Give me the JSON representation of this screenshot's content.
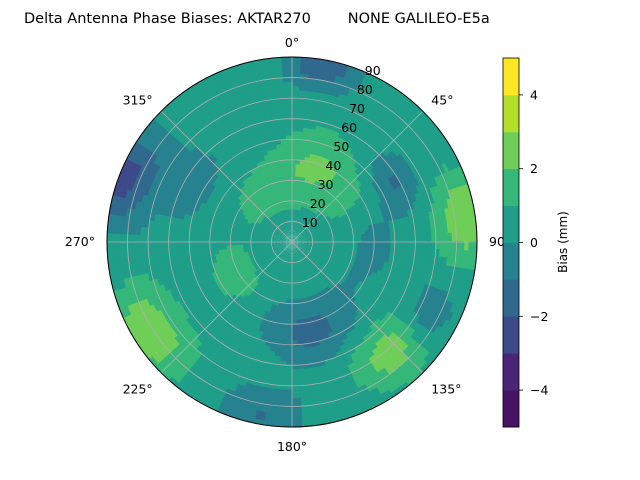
{
  "chart_data": {
    "type": "polar contour",
    "title": "Delta Antenna Phase Biases: AKTAR270        NONE GALILEO-E5a",
    "azimuth_labels": [
      "0°",
      "45°",
      "90°",
      "135°",
      "180°",
      "225°",
      "270°",
      "315°"
    ],
    "radial_labels": [
      "10",
      "20",
      "30",
      "40",
      "50",
      "60",
      "70",
      "80",
      "90"
    ],
    "radial_range": [
      0,
      90
    ],
    "grid": true,
    "colorbar": {
      "label": "Bias (mm)",
      "min": -5,
      "max": 5,
      "levels": [
        -5,
        -4,
        -3,
        -2,
        -1,
        0,
        1,
        2,
        3,
        4,
        5
      ],
      "tick_labels": [
        "4",
        "2",
        "0",
        "−2",
        "−4"
      ],
      "tick_values": [
        4,
        2,
        0,
        -2,
        -4
      ],
      "colormap": "viridis",
      "colors": [
        "#471365",
        "#482576",
        "#3e4989",
        "#31688e",
        "#26828e",
        "#1f9e89",
        "#35b779",
        "#6ece58",
        "#b5de2b",
        "#fde725"
      ]
    },
    "field": {
      "description_basis": "estimated contour field (bias in mm) over azimuth deg / zenith deg",
      "base_value": 0.55,
      "components": [
        {
          "az": 20,
          "zen": 38,
          "amp": 1.7,
          "width": 17
        },
        {
          "az": 82,
          "zen": 86,
          "amp": 2.4,
          "width": 14
        },
        {
          "az": 138,
          "zen": 72,
          "amp": 2.1,
          "width": 14
        },
        {
          "az": 238,
          "zen": 82,
          "amp": 2.4,
          "width": 15
        },
        {
          "az": 292,
          "zen": 88,
          "amp": -3.0,
          "width": 16
        },
        {
          "az": 10,
          "zen": 88,
          "amp": -2.4,
          "width": 12
        },
        {
          "az": 60,
          "zen": 58,
          "amp": -1.7,
          "width": 11
        },
        {
          "az": 168,
          "zen": 45,
          "amp": -1.9,
          "width": 16
        },
        {
          "az": 118,
          "zen": 75,
          "amp": -1.5,
          "width": 11
        },
        {
          "az": 190,
          "zen": 86,
          "amp": -1.6,
          "width": 14
        },
        {
          "az": 300,
          "zen": 58,
          "amp": -1.2,
          "width": 13
        },
        {
          "az": 240,
          "zen": 32,
          "amp": 1.1,
          "width": 11
        },
        {
          "az": 330,
          "zen": 28,
          "amp": 0.9,
          "width": 10
        },
        {
          "az": 95,
          "zen": 40,
          "amp": -0.9,
          "width": 12
        },
        {
          "az": 0,
          "zen": 0,
          "amp": -0.5,
          "width": 10
        }
      ]
    }
  }
}
